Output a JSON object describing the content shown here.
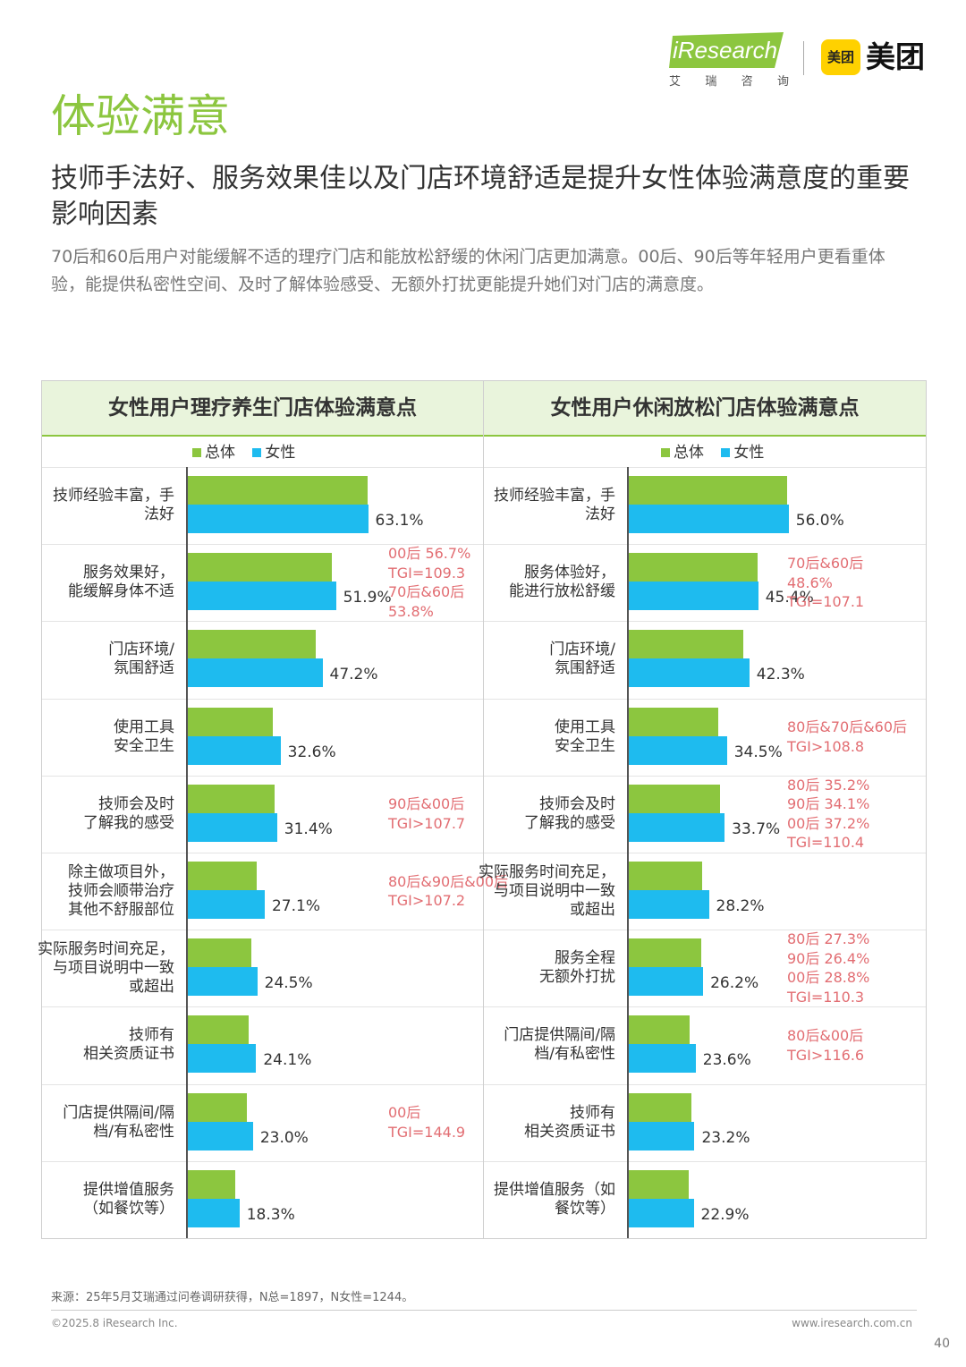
{
  "header": {
    "logo_text": "iResearch",
    "logo_sub": [
      "艾",
      "瑞",
      "咨",
      "询"
    ],
    "partner_badge": "美团",
    "partner_name": "美团"
  },
  "page": {
    "title": "体验满意",
    "headline": "技师手法好、服务效果佳以及门店环境舒适是提升女性体验满意度的重要影响因素",
    "intro": "70后和60后用户对能缓解不适的理疗门店和能放松舒缓的休闲门店更加满意。00后、90后等年轻用户更看重体验，能提供私密性空间、及时了解体验感受、无额外打扰更能提升她们对门店的满意度。"
  },
  "colors": {
    "total": "#8cc63f",
    "female": "#1ebbef",
    "note": "#e26d72",
    "brand_green": "#8cc63f"
  },
  "chart_data": [
    {
      "type": "bar",
      "orientation": "horizontal",
      "title": "女性用户理疗养生门店体验满意点",
      "legend": [
        "总体",
        "女性"
      ],
      "legend_placement": "top-center",
      "categories": [
        "技师经验丰富，手法好",
        "服务效果好，能缓解身体不适",
        "门店环境/氛围舒适",
        "使用工具安全卫生",
        "技师会及时了解我的感受",
        "除主做项目外，技师会顺带治疗其他不舒服部位",
        "实际服务时间充足，与项目说明中一致或超出",
        "技师有相关资质证书",
        "门店提供隔间/隔档/有私密性",
        "提供增值服务（如餐饮等）"
      ],
      "series": [
        {
          "name": "总体",
          "values": [
            63.0,
            50.5,
            45.0,
            30.0,
            30.5,
            24.3,
            22.5,
            21.5,
            20.8,
            16.7
          ]
        },
        {
          "name": "女性",
          "values": [
            63.1,
            51.9,
            47.2,
            32.6,
            31.4,
            27.1,
            24.5,
            24.1,
            23.0,
            18.3
          ]
        }
      ],
      "value_labels": [
        "63.1%",
        "51.9%",
        "47.2%",
        "32.6%",
        "31.4%",
        "27.1%",
        "24.5%",
        "24.1%",
        "23.0%",
        "18.3%"
      ],
      "annotations": [
        "",
        "00后 56.7%\nTGI=109.3\n70后&60后\n53.8%",
        "",
        "",
        "90后&00后\nTGI>107.7",
        "80后&90后&00后\nTGI>107.2",
        "",
        "",
        "00后\nTGI=144.9",
        ""
      ],
      "xlim": [
        0,
        100
      ]
    },
    {
      "type": "bar",
      "orientation": "horizontal",
      "title": "女性用户休闲放松门店体验满意点",
      "legend": [
        "总体",
        "女性"
      ],
      "legend_placement": "top-center",
      "categories": [
        "技师经验丰富，手法好",
        "服务体验好，能进行放松舒缓",
        "门店环境/氛围舒适",
        "使用工具安全卫生",
        "技师会及时了解我的感受",
        "实际服务时间充足，与项目说明中一致或超出",
        "服务全程无额外打扰",
        "门店提供隔间/隔档/有私密性",
        "技师有相关资质证书",
        "提供增值服务（如餐饮等）"
      ],
      "series": [
        {
          "name": "总体",
          "values": [
            55.6,
            45.3,
            40.3,
            31.6,
            32.1,
            25.8,
            25.6,
            21.6,
            22.2,
            21.2
          ]
        },
        {
          "name": "女性",
          "values": [
            56.0,
            45.4,
            42.3,
            34.5,
            33.7,
            28.2,
            26.2,
            23.6,
            23.2,
            22.9
          ]
        }
      ],
      "value_labels": [
        "56.0%",
        "45.4%",
        "42.3%",
        "34.5%",
        "33.7%",
        "28.2%",
        "26.2%",
        "23.6%",
        "23.2%",
        "22.9%"
      ],
      "annotations": [
        "",
        "70后&60后\n48.6%\nTGI=107.1",
        "",
        "80后&70后&60后\nTGI>108.8",
        "80后 35.2%\n90后 34.1%\n00后 37.2%\nTGI=110.4",
        "",
        "80后 27.3%\n90后 26.4%\n00后 28.8%\nTGI=110.3",
        "80后&00后\nTGI>116.6",
        "",
        ""
      ],
      "xlim": [
        0,
        100
      ]
    }
  ],
  "left_labels": [
    "技师经验丰富，手\n法好",
    "服务效果好，\n能缓解身体不适",
    "门店环境/\n氛围舒适",
    "使用工具\n安全卫生",
    "技师会及时\n了解我的感受",
    "除主做项目外，\n技师会顺带治疗\n其他不舒服部位",
    "实际服务时间充足，\n与项目说明中一致\n或超出",
    "技师有\n相关资质证书",
    "门店提供隔间/隔\n档/有私密性",
    "提供增值服务\n（如餐饮等）"
  ],
  "right_labels": [
    "技师经验丰富，手\n法好",
    "服务体验好，\n能进行放松舒缓",
    "门店环境/\n氛围舒适",
    "使用工具\n安全卫生",
    "技师会及时\n了解我的感受",
    "实际服务时间充足，\n与项目说明中一致\n或超出",
    "服务全程\n无额外打扰",
    "门店提供隔间/隔\n档/有私密性",
    "技师有\n相关资质证书",
    "提供增值服务（如\n餐饮等）"
  ],
  "footer": {
    "source": "来源：25年5月艾瑞通过问卷调研获得，N总=1897，N女性=1244。",
    "copyright": "©2025.8 iResearch Inc.",
    "website": "www.iresearch.com.cn",
    "page_number": "40"
  }
}
